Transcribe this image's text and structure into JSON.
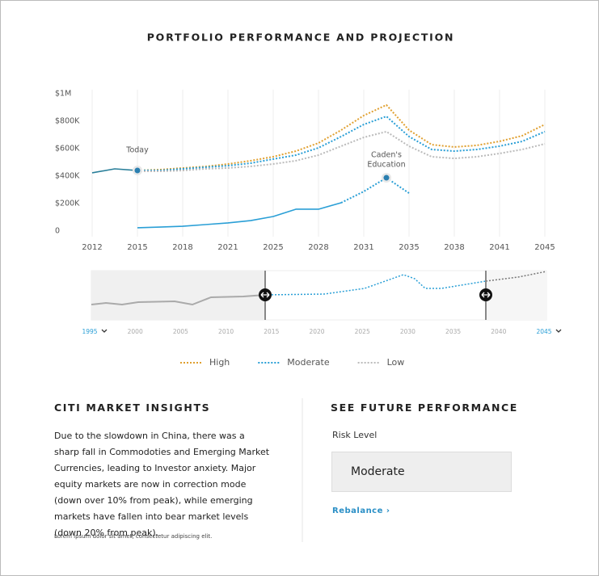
{
  "chart_data": {
    "type": "line",
    "title": "PORTFOLIO PERFORMANCE AND PROJECTION",
    "categories": [
      "2012",
      null,
      "2015",
      null,
      "2018",
      null,
      "2021",
      null,
      "2025",
      null,
      "2028",
      null,
      "2031",
      null,
      "2035",
      null,
      "2038",
      null,
      "2041",
      null,
      "2045"
    ],
    "ylim": [
      0,
      1000000
    ],
    "yticks": [
      {
        "value": 0,
        "label": "0"
      },
      {
        "value": 200000,
        "label": "$200K"
      },
      {
        "value": 400000,
        "label": "$400K"
      },
      {
        "value": 600000,
        "label": "$600K"
      },
      {
        "value": 800000,
        "label": "$800K"
      },
      {
        "value": 1000000,
        "label": "$1M"
      }
    ],
    "grid": true,
    "series": [
      {
        "name": "High",
        "color": "#e0a030",
        "style": "dotted",
        "values": [
          null,
          null,
          441000,
          447000,
          459000,
          470000,
          488000,
          512000,
          541000,
          582000,
          641000,
          735000,
          841000,
          918000,
          735000,
          629000,
          612000,
          624000,
          653000,
          694000,
          776000
        ]
      },
      {
        "name": "Moderate",
        "color": "#2a9fd6",
        "style": "dotted",
        "values": [
          null,
          null,
          441000,
          441000,
          453000,
          465000,
          476000,
          494000,
          524000,
          553000,
          606000,
          688000,
          776000,
          835000,
          688000,
          594000,
          582000,
          594000,
          618000,
          653000,
          724000
        ]
      },
      {
        "name": "Low",
        "color": "#bbbbbb",
        "style": "dotted",
        "values": [
          null,
          null,
          435000,
          435000,
          441000,
          453000,
          459000,
          471000,
          488000,
          512000,
          553000,
          618000,
          682000,
          724000,
          618000,
          541000,
          529000,
          541000,
          565000,
          594000,
          635000
        ]
      },
      {
        "color": "#2a7f9a",
        "style": "solid",
        "values": [
          424000,
          453000,
          441000,
          null,
          null,
          null,
          null,
          null,
          null,
          null,
          null,
          null,
          null,
          null,
          null,
          null,
          null,
          null,
          null,
          null,
          null
        ]
      },
      {
        "color": "#2a9fd6",
        "style": "solid",
        "values": [
          null,
          null,
          24000,
          29000,
          35000,
          47000,
          59000,
          76000,
          106000,
          159000,
          159000,
          206000,
          null,
          null,
          null,
          null,
          null,
          null,
          null,
          null,
          null
        ]
      },
      {
        "color": "#2a9fd6",
        "style": "dotted",
        "values": [
          null,
          null,
          null,
          null,
          null,
          null,
          null,
          null,
          null,
          null,
          null,
          206000,
          288000,
          388000,
          276000,
          null,
          null,
          null,
          null,
          null,
          null
        ]
      }
    ],
    "annotations": [
      [
        "Today"
      ],
      [
        "Caden's",
        "Education"
      ]
    ],
    "navigator_labels": [
      "1995",
      "2000",
      "2005",
      "2010",
      "2015",
      "2020",
      "2025",
      "2030",
      "2035",
      "2040",
      "2045"
    ]
  },
  "insights": {
    "title": "CITI MARKET INSIGHTS",
    "body": "Due to the slowdown in China, there was a sharp fall in Commodoties and Emerging Market Currencies, leading to Investor anxiety. Major equity markets are now in correction mode (down over 10% from peak), while emerging markets have fallen into bear market levels (down 20% from peak).",
    "footnote": "Lorem ipsum dolor sit amet, consectetur adipiscing elit."
  },
  "future": {
    "title": "SEE FUTURE PERFORMANCE",
    "risk_label": "Risk Level",
    "risk_value": "Moderate",
    "link": "Rebalance ›"
  }
}
